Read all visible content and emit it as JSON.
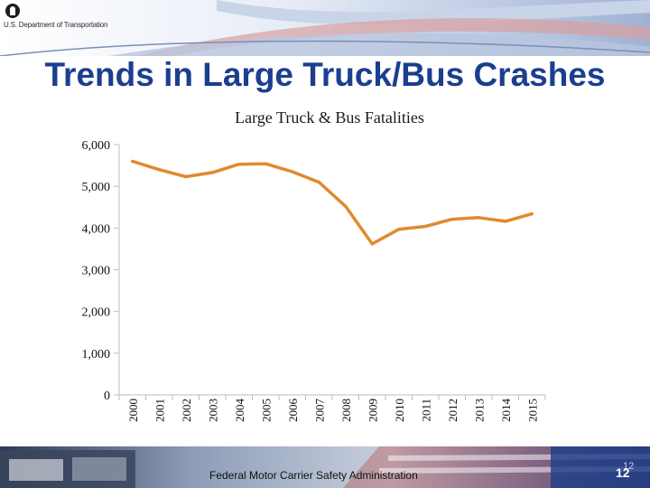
{
  "header": {
    "agency": "U.S. Department of Transportation",
    "title": "Trends in Large Truck/Bus Crashes"
  },
  "colors": {
    "title": "#1b3f8f",
    "line": "#e08a2e",
    "axis": "#bcbcbc"
  },
  "chart_data": {
    "type": "line",
    "title": "Large Truck & Bus Fatalities",
    "xlabel": "",
    "ylabel": "",
    "x": [
      "2000",
      "2001",
      "2002",
      "2003",
      "2004",
      "2005",
      "2006",
      "2007",
      "2008",
      "2009",
      "2010",
      "2011",
      "2012",
      "2013",
      "2014",
      "2015"
    ],
    "series": [
      {
        "values": [
          5600,
          5400,
          5230,
          5330,
          5530,
          5540,
          5350,
          5100,
          4520,
          3620,
          3970,
          4040,
          4210,
          4250,
          4160,
          4340
        ]
      }
    ],
    "ylim": [
      0,
      6000
    ],
    "yticks": [
      "0",
      "1,000",
      "2,000",
      "3,000",
      "4,000",
      "5,000",
      "6,000"
    ],
    "grid": false,
    "legend": "none"
  },
  "footer": {
    "organization": "Federal Motor Carrier Safety Administration",
    "page": "12",
    "page_ghost": "12"
  }
}
